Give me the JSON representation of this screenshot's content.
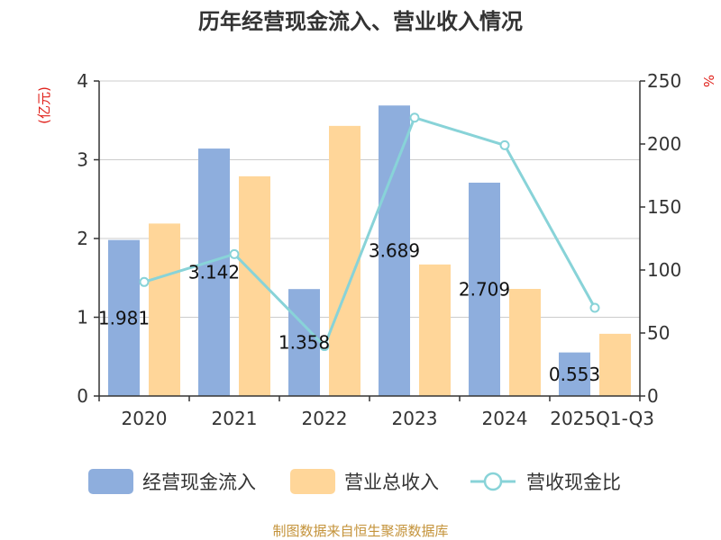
{
  "chart_data": {
    "type": "bar",
    "title": "历年经营现金流入、营业收入情况",
    "categories": [
      "2020",
      "2021",
      "2022",
      "2023",
      "2024",
      "2025Q1-Q3"
    ],
    "left_axis_unit": "(亿元)",
    "right_axis_unit": "%",
    "ylim": [
      0,
      4
    ],
    "yticks": [
      0,
      1,
      2,
      3,
      4
    ],
    "y2lim": [
      0,
      250
    ],
    "y2ticks": [
      0,
      50,
      100,
      150,
      200,
      250
    ],
    "grid": true,
    "legend_position": "bottom",
    "series": [
      {
        "name": "经营现金流入",
        "type": "bar",
        "axis": "left",
        "color": "#8eaedd",
        "values": [
          1.981,
          3.142,
          1.358,
          3.689,
          2.709,
          0.553
        ],
        "labels": [
          "1.981",
          "3.142",
          "1.358",
          "3.689",
          "2.709",
          "0.553"
        ]
      },
      {
        "name": "营业总收入",
        "type": "bar",
        "axis": "left",
        "color": "#ffd699",
        "values": [
          2.19,
          2.79,
          3.43,
          1.67,
          1.36,
          0.79
        ]
      },
      {
        "name": "营收现金比",
        "type": "line",
        "axis": "right",
        "color": "#88d3d8",
        "values": [
          90.5,
          112.6,
          39.6,
          220.9,
          199.0,
          70.0
        ]
      }
    ]
  },
  "source": "制图数据来自恒生聚源数据库"
}
